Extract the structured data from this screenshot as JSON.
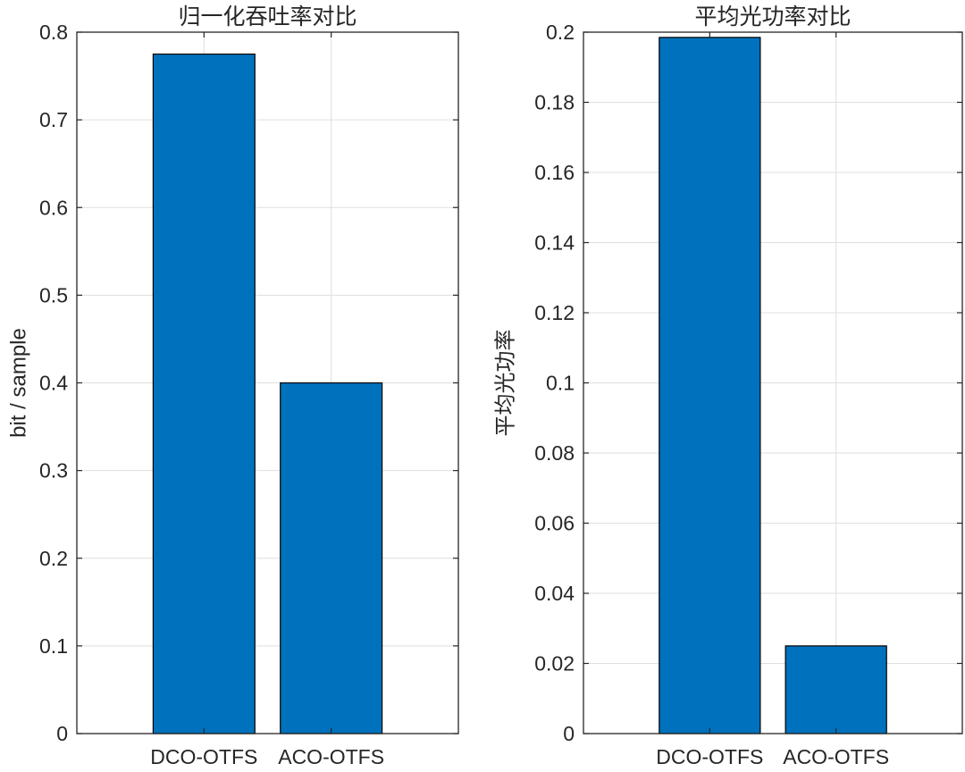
{
  "figure": {
    "background": "#ffffff",
    "bar_color": "#0072BD",
    "bar_edge_color": "#000000",
    "grid_color": "#DFDFDF",
    "axis_color": "#262626"
  },
  "chart_data": [
    {
      "type": "bar",
      "title": "归一化吞吐率对比",
      "xlabel": "",
      "ylabel": "bit / sample",
      "categories": [
        "DCO-OTFS",
        "ACO-OTFS"
      ],
      "values": [
        0.775,
        0.4
      ],
      "ylim": [
        0,
        0.8
      ],
      "yticks": [
        0,
        0.1,
        0.2,
        0.3,
        0.4,
        0.5,
        0.6,
        0.7,
        0.8
      ],
      "ytick_labels": [
        "0",
        "0.1",
        "0.2",
        "0.3",
        "0.4",
        "0.5",
        "0.6",
        "0.7",
        "0.8"
      ],
      "grid": true,
      "legend": "none"
    },
    {
      "type": "bar",
      "title": "平均光功率对比",
      "xlabel": "",
      "ylabel": "平均光功率",
      "categories": [
        "DCO-OTFS",
        "ACO-OTFS"
      ],
      "values": [
        0.1985,
        0.025
      ],
      "ylim": [
        0,
        0.2
      ],
      "yticks": [
        0,
        0.02,
        0.04,
        0.06,
        0.08,
        0.1,
        0.12,
        0.14,
        0.16,
        0.18,
        0.2
      ],
      "ytick_labels": [
        "0",
        "0.02",
        "0.04",
        "0.06",
        "0.08",
        "0.1",
        "0.12",
        "0.14",
        "0.16",
        "0.18",
        "0.2"
      ],
      "grid": true,
      "legend": "none"
    }
  ]
}
